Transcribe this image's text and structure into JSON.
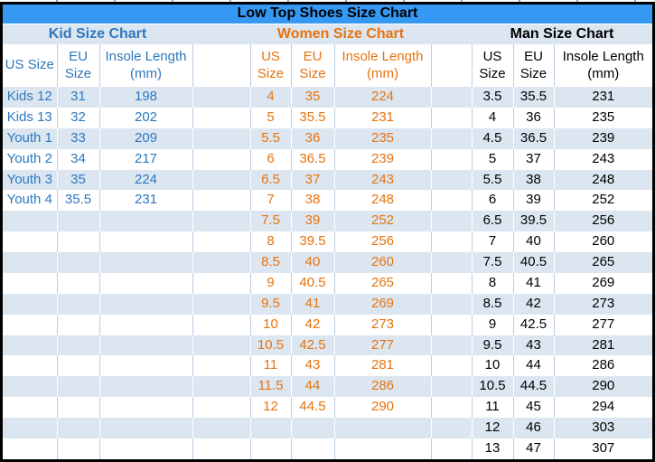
{
  "title": "Low Top Shoes Size Chart",
  "sections": {
    "kid": {
      "label": "Kid Size Chart",
      "headers": {
        "us": "US Size",
        "eu": "EU Size",
        "insole": "Insole Length (mm)"
      },
      "rows": [
        [
          "Kids 12",
          "31",
          "198"
        ],
        [
          "Kids 13",
          "32",
          "202"
        ],
        [
          "Youth 1",
          "33",
          "209"
        ],
        [
          "Youth 2",
          "34",
          "217"
        ],
        [
          "Youth 3",
          "35",
          "224"
        ],
        [
          "Youth 4",
          "35.5",
          "231"
        ]
      ]
    },
    "women": {
      "label": "Women Size Chart",
      "headers": {
        "us": "US Size",
        "eu": "EU Size",
        "insole": "Insole Length (mm)"
      },
      "rows": [
        [
          "4",
          "35",
          "224"
        ],
        [
          "5",
          "35.5",
          "231"
        ],
        [
          "5.5",
          "36",
          "235"
        ],
        [
          "6",
          "36.5",
          "239"
        ],
        [
          "6.5",
          "37",
          "243"
        ],
        [
          "7",
          "38",
          "248"
        ],
        [
          "7.5",
          "39",
          "252"
        ],
        [
          "8",
          "39.5",
          "256"
        ],
        [
          "8.5",
          "40",
          "260"
        ],
        [
          "9",
          "40.5",
          "265"
        ],
        [
          "9.5",
          "41",
          "269"
        ],
        [
          "10",
          "42",
          "273"
        ],
        [
          "10.5",
          "42.5",
          "277"
        ],
        [
          "11",
          "43",
          "281"
        ],
        [
          "11.5",
          "44",
          "286"
        ],
        [
          "12",
          "44.5",
          "290"
        ]
      ]
    },
    "man": {
      "label": "Man Size Chart",
      "headers": {
        "us": "US Size",
        "eu": "EU Size",
        "insole": "Insole Length (mm)"
      },
      "rows": [
        [
          "3.5",
          "35.5",
          "231"
        ],
        [
          "4",
          "36",
          "235"
        ],
        [
          "4.5",
          "36.5",
          "239"
        ],
        [
          "5",
          "37",
          "243"
        ],
        [
          "5.5",
          "38",
          "248"
        ],
        [
          "6",
          "39",
          "252"
        ],
        [
          "6.5",
          "39.5",
          "256"
        ],
        [
          "7",
          "40",
          "260"
        ],
        [
          "7.5",
          "40.5",
          "265"
        ],
        [
          "8",
          "41",
          "269"
        ],
        [
          "8.5",
          "42",
          "273"
        ],
        [
          "9",
          "42.5",
          "277"
        ],
        [
          "9.5",
          "43",
          "281"
        ],
        [
          "10",
          "44",
          "286"
        ],
        [
          "10.5",
          "44.5",
          "290"
        ],
        [
          "11",
          "45",
          "294"
        ],
        [
          "12",
          "46",
          "303"
        ],
        [
          "13",
          "47",
          "307"
        ]
      ]
    },
    "total_rows": 18
  },
  "colors": {
    "title_bar": "#3598F2",
    "stripe": "#DCE6F1",
    "gridline": "#B9CDE4",
    "kid_text": "#2E78BE",
    "women_text": "#E5740E",
    "man_text": "#000000",
    "outer_border": "#000000"
  }
}
